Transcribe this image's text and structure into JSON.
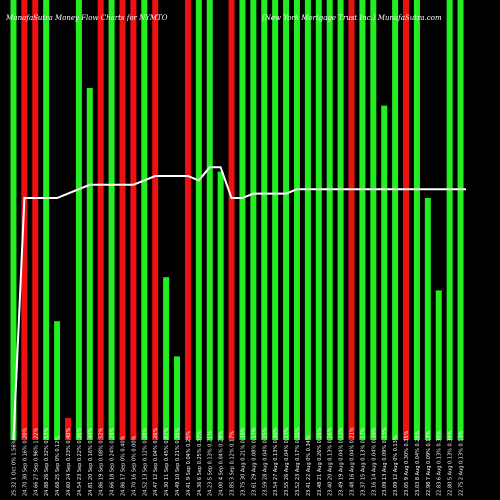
{
  "header": {
    "left": "MunafaSutra Money Flow Charts for NYMTO",
    "right": "(New York Mortgage Trust Inc.) MunafaSutra.com"
  },
  "chart_data": {
    "type": "bar",
    "title": "MunafaSutra Money Flow Charts for NYMTO",
    "colors": {
      "up": "#22ee22",
      "down": "#ee1111",
      "line": "#ffffff",
      "bg": "#000000",
      "wick": "#8a5a00"
    },
    "categories": [
      "25.32 1 Oct 0% 1.56%",
      "24.70 30 Sep 0.16% 0.20%",
      "24.66 27 Sep 0.96% 1.22%",
      "24.88 26 Sep 0.32% 0.53%",
      "24.68 25 Sep 0% 0.12%",
      "24.60 24 Sep 0.23% 0.40%",
      "24.54 23 Sep 0.22% 0.36%",
      "24.81 20 Sep 0.16% 0.44%",
      "24.86 19 Sep 0.08% 0.52%",
      "24.66 18 Sep 0.24% 0.24%",
      "24.86 17 Sep 0% 0.40%",
      "24.70 16 Sep 0% 0.00%",
      "24.52 13 Sep 0.12% 0.20%",
      "24.47 12 Sep 0.04% 0.26%",
      "24.30 11 Sep 0.45% 0.62%",
      "24.49 10 Sep 0.21% 0.39%",
      "24.41 9 Sep 0.04% 0.25%",
      "24.36 6 Sep 0.25% 0.37%",
      "24.23 5 Sep 0.13% 0.21%",
      "24.00 4 Sep 0.04% 0.29%",
      "23.85 3 Sep 0.12% 0.17%",
      "23.75 30 Aug 0.21% 0.38%",
      "23.61 29 Aug 0.08% 0.17%",
      "23.59 28 Aug 0.04% 0.25%",
      "23.54 27 Aug 0.13% 0.30%",
      "23.55 26 Aug 0.04% 0.13%",
      "23.52 23 Aug 0.17% 0.30%",
      "23.41 22 Aug 0% 0.34%",
      "23.48 21 Aug 0.26% 0.26%",
      "23.40 20 Aug 0.13% 0.26%",
      "23.49 19 Aug 0.04% 0.13%",
      "23.48 16 Aug 0.04% 0.21%",
      "23.37 15 Aug 0.13% 0.17%",
      "23.16 14 Aug 0.04% 0.30%",
      "23.09 13 Aug 0.09% 0.13%",
      "23.09 12 Aug 0% 0.13%",
      "23.05 9 Aug 0.30% 0.35%",
      "23.03 8 Aug 0.04% 0.26%",
      "22.98 7 Aug 0.09% 0.13%",
      "22.83 6 Aug 0.13% 0.30%",
      "22.80 5 Aug 0.13% 0.39%",
      "22.75 2 Aug 0.13% 0.13%"
    ],
    "directions": [
      "up",
      "down",
      "down",
      "up",
      "up",
      "down",
      "up",
      "up",
      "down",
      "up",
      "down",
      "down",
      "up",
      "down",
      "up",
      "up",
      "down",
      "up",
      "up",
      "up",
      "down",
      "up",
      "up",
      "up",
      "up",
      "up",
      "up",
      "up",
      "up",
      "up",
      "up",
      "down",
      "up",
      "up",
      "up",
      "up",
      "down",
      "up",
      "up",
      "up",
      "up",
      "up"
    ],
    "values": [
      100,
      100,
      100,
      100,
      27,
      5,
      100,
      80,
      100,
      100,
      100,
      100,
      100,
      100,
      37,
      19,
      100,
      100,
      100,
      61,
      100,
      100,
      100,
      100,
      100,
      100,
      100,
      100,
      100,
      100,
      100,
      100,
      100,
      100,
      76,
      100,
      100,
      100,
      55,
      34,
      100,
      100
    ],
    "short_tops": [
      null,
      null,
      9,
      null,
      null,
      null,
      null,
      null,
      null,
      null,
      null,
      null,
      null,
      null,
      null,
      null,
      null,
      null,
      null,
      null,
      null,
      null,
      null,
      null,
      null,
      null,
      null,
      null,
      null,
      null,
      null,
      null,
      null,
      null,
      null,
      null,
      null,
      null,
      null,
      null,
      null,
      null
    ],
    "line": [
      0,
      55,
      55,
      55,
      55,
      56,
      57,
      58,
      58,
      58,
      58,
      58,
      59,
      60,
      60,
      60,
      60,
      59,
      62,
      62,
      55,
      55,
      56,
      56,
      56,
      56,
      57,
      57,
      57,
      57,
      57,
      57,
      57,
      57,
      57,
      57,
      57,
      57,
      57,
      57,
      57,
      57
    ],
    "ylim": [
      0,
      100
    ]
  }
}
